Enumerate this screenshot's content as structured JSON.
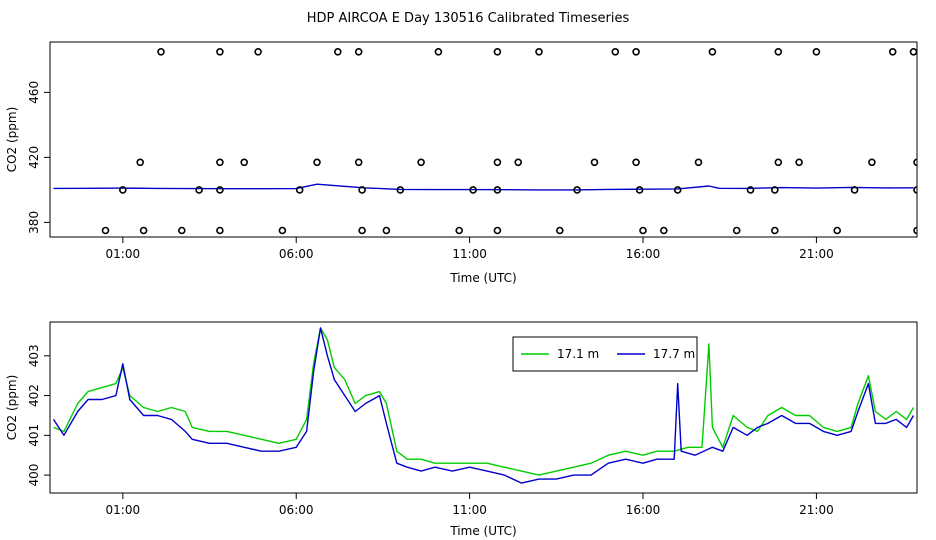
{
  "figure": {
    "title": "HDP AIRCOA E  Day 130516  Calibrated Timeseries"
  },
  "colors": {
    "series_17_1": "#00cc00",
    "series_17_7": "#0000cc",
    "markers": "#000000"
  },
  "chart_data": [
    {
      "type": "scatter",
      "xlabel": "Time (UTC)",
      "ylabel": "CO2 (ppm)",
      "x_unit": "hours UTC",
      "xlim": [
        -1.1,
        23.9
      ],
      "ylim": [
        371,
        491
      ],
      "x_ticks": [
        {
          "value": 1,
          "label": "01:00"
        },
        {
          "value": 6,
          "label": "06:00"
        },
        {
          "value": 11,
          "label": "11:00"
        },
        {
          "value": 16,
          "label": "16:00"
        },
        {
          "value": 21,
          "label": "21:00"
        }
      ],
      "y_ticks": [
        {
          "value": 380,
          "label": "380"
        },
        {
          "value": 420,
          "label": "420"
        },
        {
          "value": 460,
          "label": "460"
        }
      ],
      "grid": false,
      "legend": "none",
      "points": [
        {
          "x": 0.5,
          "y": 375
        },
        {
          "x": 1.6,
          "y": 375
        },
        {
          "x": 2.7,
          "y": 375
        },
        {
          "x": 3.8,
          "y": 375
        },
        {
          "x": 5.6,
          "y": 375
        },
        {
          "x": 7.9,
          "y": 375
        },
        {
          "x": 8.6,
          "y": 375
        },
        {
          "x": 10.7,
          "y": 375
        },
        {
          "x": 11.8,
          "y": 375
        },
        {
          "x": 13.6,
          "y": 375
        },
        {
          "x": 16.0,
          "y": 375
        },
        {
          "x": 16.6,
          "y": 375
        },
        {
          "x": 18.7,
          "y": 375
        },
        {
          "x": 19.8,
          "y": 375
        },
        {
          "x": 21.6,
          "y": 375
        },
        {
          "x": 23.9,
          "y": 375
        },
        {
          "x": 1.0,
          "y": 400
        },
        {
          "x": 3.2,
          "y": 400
        },
        {
          "x": 3.8,
          "y": 400
        },
        {
          "x": 6.1,
          "y": 400
        },
        {
          "x": 7.9,
          "y": 400
        },
        {
          "x": 9.0,
          "y": 400
        },
        {
          "x": 11.1,
          "y": 400
        },
        {
          "x": 11.8,
          "y": 400
        },
        {
          "x": 14.1,
          "y": 400
        },
        {
          "x": 15.9,
          "y": 400
        },
        {
          "x": 17.0,
          "y": 400
        },
        {
          "x": 19.1,
          "y": 400
        },
        {
          "x": 19.8,
          "y": 400
        },
        {
          "x": 22.1,
          "y": 400
        },
        {
          "x": 23.9,
          "y": 400
        },
        {
          "x": 1.5,
          "y": 417
        },
        {
          "x": 3.8,
          "y": 417
        },
        {
          "x": 4.5,
          "y": 417
        },
        {
          "x": 6.6,
          "y": 417
        },
        {
          "x": 7.8,
          "y": 417
        },
        {
          "x": 9.6,
          "y": 417
        },
        {
          "x": 11.8,
          "y": 417
        },
        {
          "x": 12.4,
          "y": 417
        },
        {
          "x": 14.6,
          "y": 417
        },
        {
          "x": 15.8,
          "y": 417
        },
        {
          "x": 17.6,
          "y": 417
        },
        {
          "x": 19.9,
          "y": 417
        },
        {
          "x": 20.5,
          "y": 417
        },
        {
          "x": 22.6,
          "y": 417
        },
        {
          "x": 23.9,
          "y": 417
        },
        {
          "x": 2.1,
          "y": 485
        },
        {
          "x": 3.8,
          "y": 485
        },
        {
          "x": 4.9,
          "y": 485
        },
        {
          "x": 7.2,
          "y": 485
        },
        {
          "x": 7.8,
          "y": 485
        },
        {
          "x": 10.1,
          "y": 485
        },
        {
          "x": 11.8,
          "y": 485
        },
        {
          "x": 13.0,
          "y": 485
        },
        {
          "x": 15.2,
          "y": 485
        },
        {
          "x": 15.8,
          "y": 485
        },
        {
          "x": 18.0,
          "y": 485
        },
        {
          "x": 19.9,
          "y": 485
        },
        {
          "x": 21.0,
          "y": 485
        },
        {
          "x": 23.2,
          "y": 485
        },
        {
          "x": 23.8,
          "y": 485
        }
      ],
      "series": [
        {
          "name": "",
          "values": [
            [
              -1.0,
              400.9
            ],
            [
              0.0,
              401.0
            ],
            [
              1.0,
              401.1
            ],
            [
              2.0,
              400.9
            ],
            [
              3.0,
              400.8
            ],
            [
              4.0,
              400.7
            ],
            [
              5.0,
              400.7
            ],
            [
              6.0,
              400.8
            ],
            [
              6.6,
              403.5
            ],
            [
              7.2,
              402.5
            ],
            [
              8.0,
              401.2
            ],
            [
              9.0,
              400.3
            ],
            [
              10.0,
              400.2
            ],
            [
              11.0,
              400.2
            ],
            [
              12.0,
              400.1
            ],
            [
              13.0,
              400.0
            ],
            [
              14.0,
              400.0
            ],
            [
              15.0,
              400.3
            ],
            [
              16.0,
              400.4
            ],
            [
              17.0,
              400.6
            ],
            [
              17.9,
              402.4
            ],
            [
              18.2,
              401.0
            ],
            [
              19.0,
              400.9
            ],
            [
              20.0,
              401.4
            ],
            [
              21.0,
              401.1
            ],
            [
              22.0,
              401.5
            ],
            [
              23.0,
              401.2
            ],
            [
              23.8,
              401.3
            ]
          ]
        }
      ]
    },
    {
      "type": "line",
      "xlabel": "Time (UTC)",
      "ylabel": "CO2 (ppm)",
      "x_unit": "hours UTC",
      "xlim": [
        -1.1,
        23.9
      ],
      "ylim": [
        399.55,
        403.85
      ],
      "x_ticks": [
        {
          "value": 1,
          "label": "01:00"
        },
        {
          "value": 6,
          "label": "06:00"
        },
        {
          "value": 11,
          "label": "11:00"
        },
        {
          "value": 16,
          "label": "16:00"
        },
        {
          "value": 21,
          "label": "21:00"
        }
      ],
      "y_ticks": [
        {
          "value": 400,
          "label": "400"
        },
        {
          "value": 401,
          "label": "401"
        },
        {
          "value": 402,
          "label": "402"
        },
        {
          "value": 403,
          "label": "403"
        }
      ],
      "grid": false,
      "legend": "top-center",
      "series": [
        {
          "name": "17.1 m",
          "values": [
            [
              -1.0,
              401.2
            ],
            [
              -0.7,
              401.1
            ],
            [
              -0.3,
              401.8
            ],
            [
              0.0,
              402.1
            ],
            [
              0.4,
              402.2
            ],
            [
              0.8,
              402.3
            ],
            [
              1.0,
              402.7
            ],
            [
              1.2,
              402.0
            ],
            [
              1.6,
              401.7
            ],
            [
              2.0,
              401.6
            ],
            [
              2.4,
              401.7
            ],
            [
              2.8,
              401.6
            ],
            [
              3.0,
              401.2
            ],
            [
              3.5,
              401.1
            ],
            [
              4.0,
              401.1
            ],
            [
              4.5,
              401.0
            ],
            [
              5.0,
              400.9
            ],
            [
              5.5,
              400.8
            ],
            [
              6.0,
              400.9
            ],
            [
              6.3,
              401.4
            ],
            [
              6.5,
              402.8
            ],
            [
              6.7,
              403.7
            ],
            [
              6.9,
              403.4
            ],
            [
              7.1,
              402.7
            ],
            [
              7.4,
              402.4
            ],
            [
              7.7,
              401.8
            ],
            [
              8.0,
              402.0
            ],
            [
              8.4,
              402.1
            ],
            [
              8.6,
              401.8
            ],
            [
              8.9,
              400.6
            ],
            [
              9.2,
              400.4
            ],
            [
              9.6,
              400.4
            ],
            [
              10.0,
              400.3
            ],
            [
              10.5,
              400.3
            ],
            [
              11.0,
              400.3
            ],
            [
              11.5,
              400.3
            ],
            [
              12.0,
              400.2
            ],
            [
              12.5,
              400.1
            ],
            [
              13.0,
              400.0
            ],
            [
              13.5,
              400.1
            ],
            [
              14.0,
              400.2
            ],
            [
              14.5,
              400.3
            ],
            [
              15.0,
              400.5
            ],
            [
              15.5,
              400.6
            ],
            [
              16.0,
              400.5
            ],
            [
              16.4,
              400.6
            ],
            [
              16.9,
              400.6
            ],
            [
              17.3,
              400.7
            ],
            [
              17.7,
              400.7
            ],
            [
              17.9,
              403.3
            ],
            [
              18.0,
              401.2
            ],
            [
              18.3,
              400.7
            ],
            [
              18.6,
              401.5
            ],
            [
              19.0,
              401.2
            ],
            [
              19.3,
              401.1
            ],
            [
              19.6,
              401.5
            ],
            [
              20.0,
              401.7
            ],
            [
              20.4,
              401.5
            ],
            [
              20.8,
              401.5
            ],
            [
              21.2,
              401.2
            ],
            [
              21.6,
              401.1
            ],
            [
              22.0,
              401.2
            ],
            [
              22.2,
              401.8
            ],
            [
              22.5,
              402.5
            ],
            [
              22.7,
              401.6
            ],
            [
              23.0,
              401.4
            ],
            [
              23.3,
              401.6
            ],
            [
              23.6,
              401.4
            ],
            [
              23.8,
              401.7
            ]
          ]
        },
        {
          "name": "17.7 m",
          "values": [
            [
              -1.0,
              401.4
            ],
            [
              -0.7,
              401.0
            ],
            [
              -0.3,
              401.6
            ],
            [
              0.0,
              401.9
            ],
            [
              0.4,
              401.9
            ],
            [
              0.8,
              402.0
            ],
            [
              1.0,
              402.8
            ],
            [
              1.2,
              401.9
            ],
            [
              1.6,
              401.5
            ],
            [
              2.0,
              401.5
            ],
            [
              2.4,
              401.4
            ],
            [
              2.8,
              401.1
            ],
            [
              3.0,
              400.9
            ],
            [
              3.5,
              400.8
            ],
            [
              4.0,
              400.8
            ],
            [
              4.5,
              400.7
            ],
            [
              5.0,
              400.6
            ],
            [
              5.5,
              400.6
            ],
            [
              6.0,
              400.7
            ],
            [
              6.3,
              401.1
            ],
            [
              6.5,
              402.6
            ],
            [
              6.7,
              403.7
            ],
            [
              6.9,
              403.0
            ],
            [
              7.1,
              402.4
            ],
            [
              7.4,
              402.0
            ],
            [
              7.7,
              401.6
            ],
            [
              8.0,
              401.8
            ],
            [
              8.4,
              402.0
            ],
            [
              8.6,
              401.3
            ],
            [
              8.9,
              400.3
            ],
            [
              9.2,
              400.2
            ],
            [
              9.6,
              400.1
            ],
            [
              10.0,
              400.2
            ],
            [
              10.5,
              400.1
            ],
            [
              11.0,
              400.2
            ],
            [
              11.5,
              400.1
            ],
            [
              12.0,
              400.0
            ],
            [
              12.5,
              399.8
            ],
            [
              13.0,
              399.9
            ],
            [
              13.5,
              399.9
            ],
            [
              14.0,
              400.0
            ],
            [
              14.5,
              400.0
            ],
            [
              15.0,
              400.3
            ],
            [
              15.5,
              400.4
            ],
            [
              16.0,
              400.3
            ],
            [
              16.4,
              400.4
            ],
            [
              16.9,
              400.4
            ],
            [
              17.0,
              402.3
            ],
            [
              17.1,
              400.6
            ],
            [
              17.5,
              400.5
            ],
            [
              18.0,
              400.7
            ],
            [
              18.3,
              400.6
            ],
            [
              18.6,
              401.2
            ],
            [
              19.0,
              401.0
            ],
            [
              19.3,
              401.2
            ],
            [
              19.6,
              401.3
            ],
            [
              20.0,
              401.5
            ],
            [
              20.4,
              401.3
            ],
            [
              20.8,
              401.3
            ],
            [
              21.2,
              401.1
            ],
            [
              21.6,
              401.0
            ],
            [
              22.0,
              401.1
            ],
            [
              22.2,
              401.6
            ],
            [
              22.5,
              402.3
            ],
            [
              22.7,
              401.3
            ],
            [
              23.0,
              401.3
            ],
            [
              23.3,
              401.4
            ],
            [
              23.6,
              401.2
            ],
            [
              23.8,
              401.5
            ]
          ]
        }
      ]
    }
  ]
}
